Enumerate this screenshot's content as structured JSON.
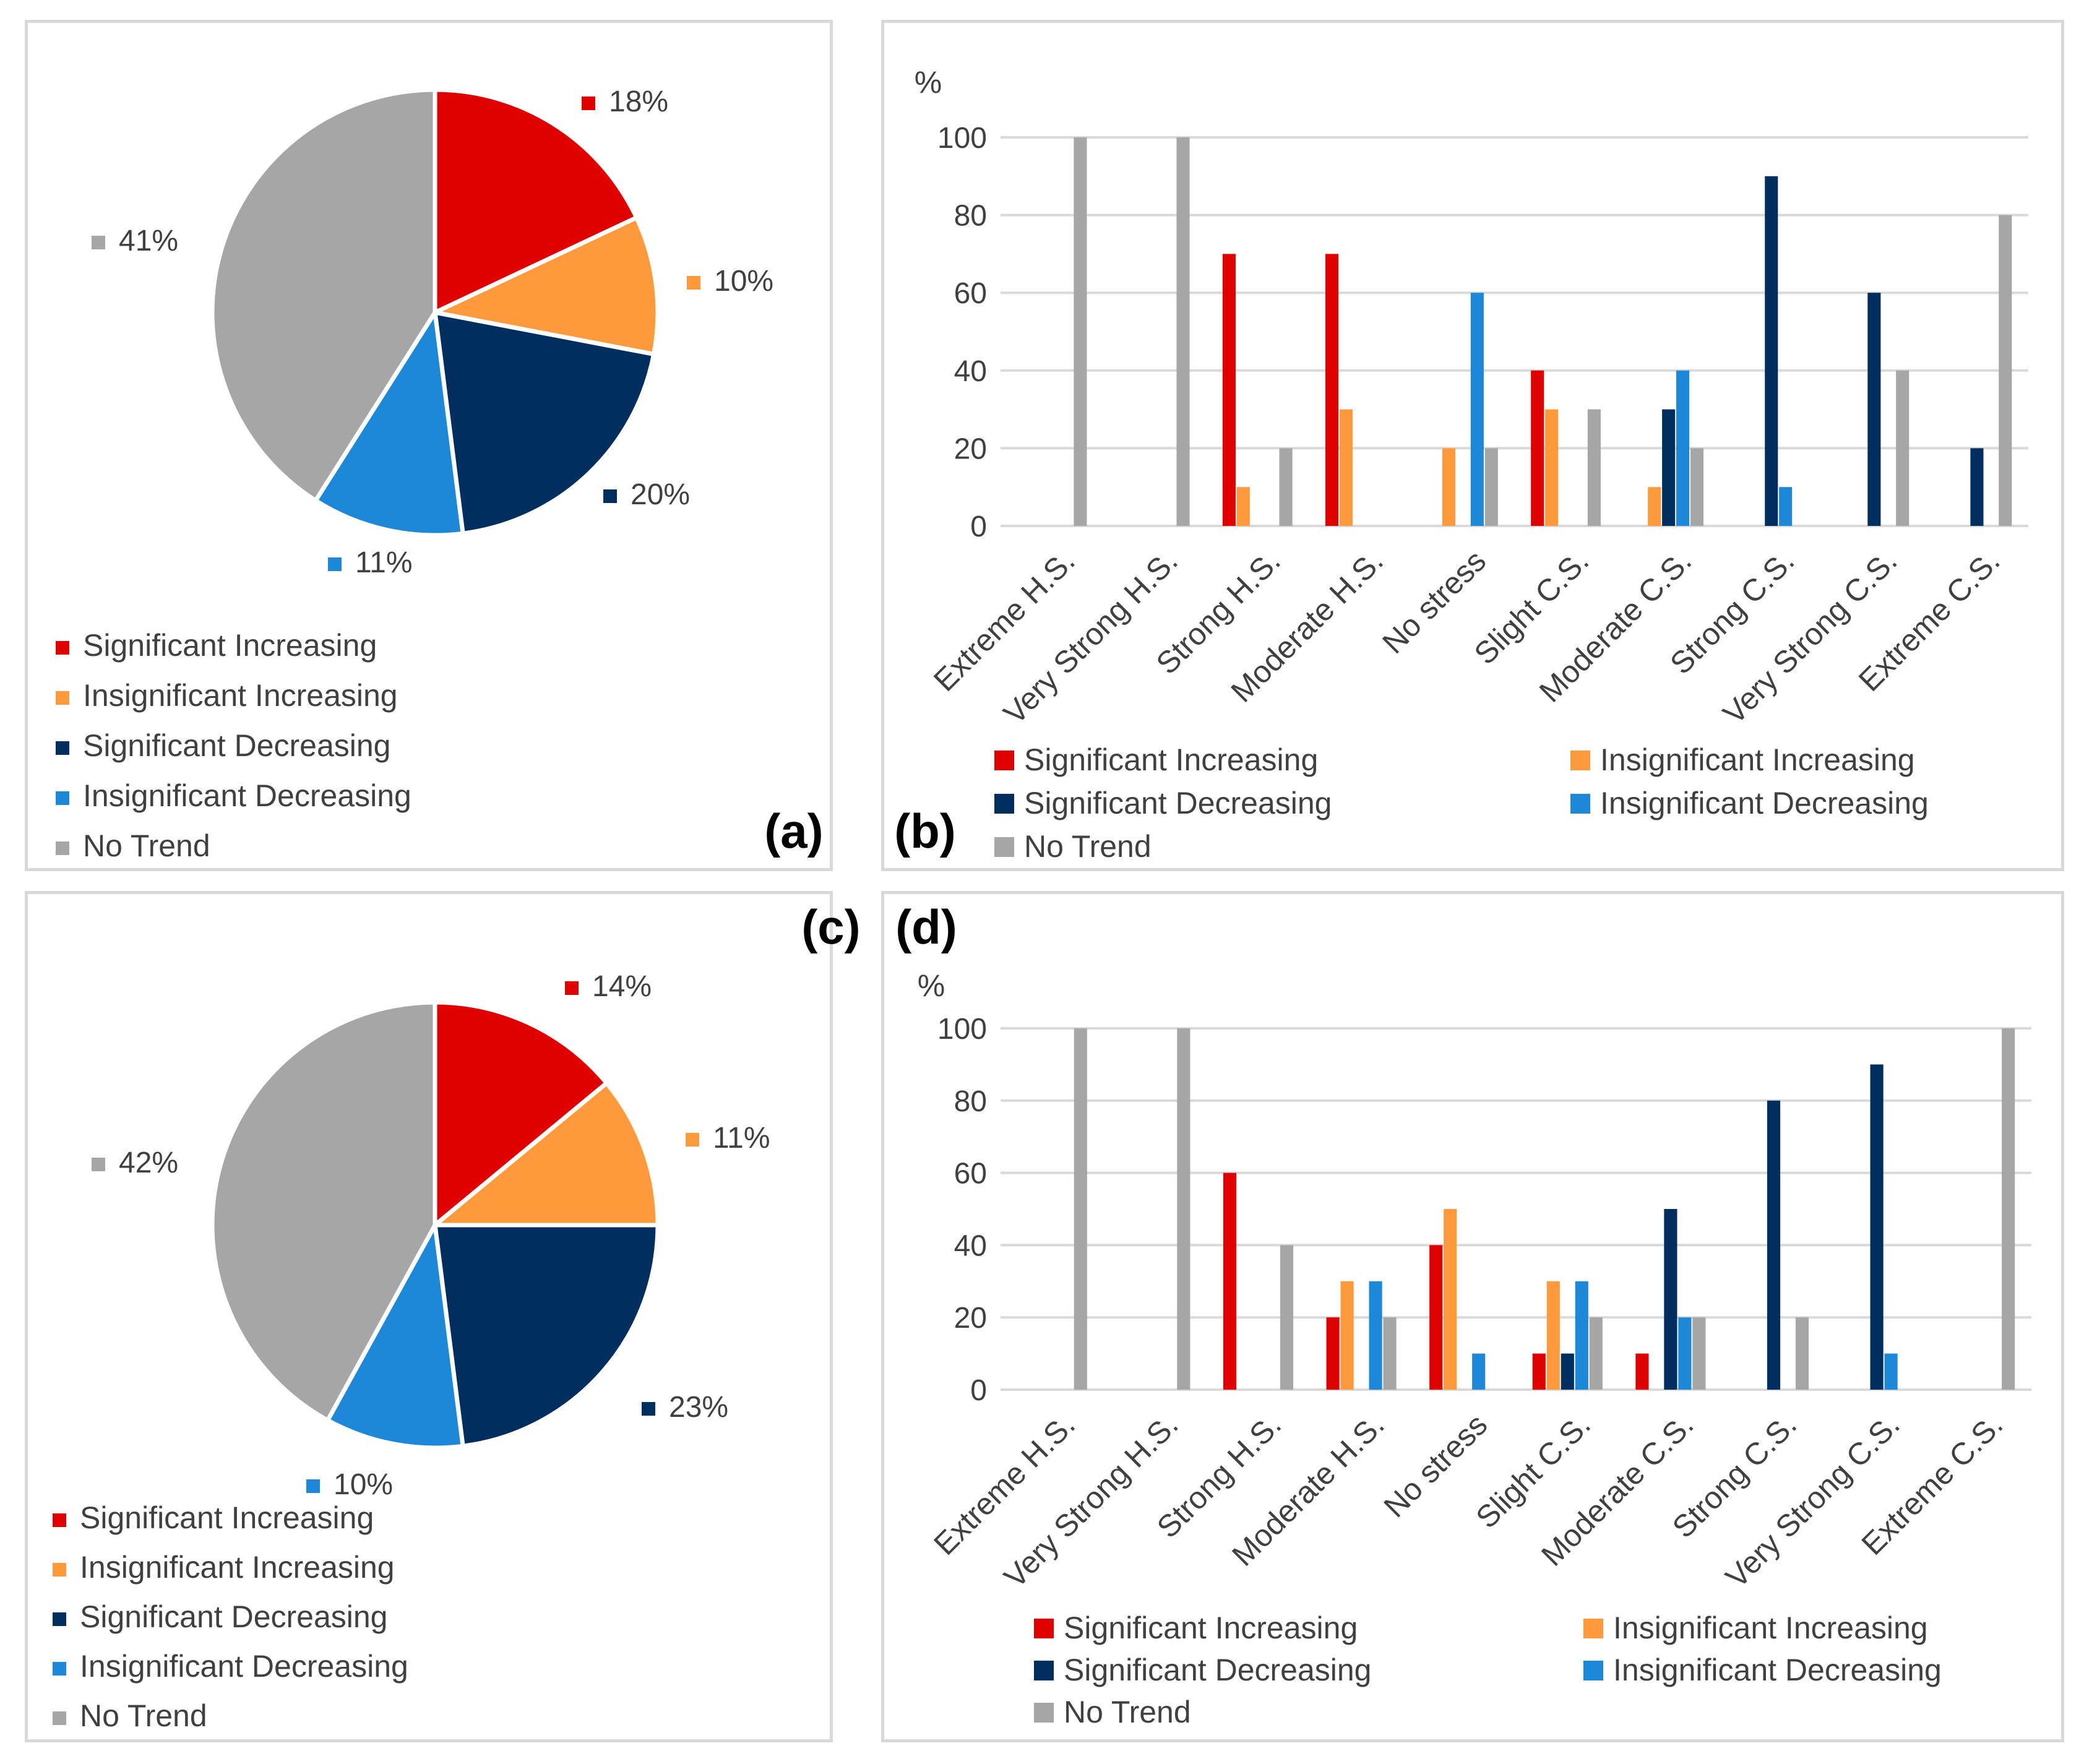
{
  "colors": {
    "significant_increasing": "#e00000",
    "insignificant_increasing": "#ff9a3c",
    "significant_decreasing": "#002f5f",
    "insignificant_decreasing": "#1e88d8",
    "no_trend": "#a6a6a6",
    "gridline": "#d9d9d9",
    "text": "#404040"
  },
  "legend_labels": [
    "Significant Increasing",
    "Insignificant Increasing",
    "Significant Decreasing",
    "Insignificant Decreasing",
    "No Trend"
  ],
  "panels": {
    "a": "(a)",
    "b": "(b)",
    "c": "(c)",
    "d": "(d)"
  },
  "chart_data": [
    {
      "panel": "(a)",
      "type": "pie",
      "labels": [
        "Significant Increasing",
        "Insignificant Increasing",
        "Significant Decreasing",
        "Insignificant Decreasing",
        "No Trend"
      ],
      "values": [
        18,
        10,
        20,
        11,
        41
      ],
      "value_labels": [
        "18%",
        "10%",
        "20%",
        "11%",
        "41%"
      ],
      "legend_position": "bottom-left"
    },
    {
      "panel": "(b)",
      "type": "bar",
      "ylabel": "%",
      "ylim": [
        0,
        100
      ],
      "yticks": [
        "0",
        "20",
        "40",
        "60",
        "80",
        "100"
      ],
      "grid": true,
      "legend_position": "bottom",
      "categories": [
        "Extreme H.S.",
        "Very Strong H.S.",
        "Strong H.S.",
        "Moderate H.S.",
        "No stress",
        "Slight C.S.",
        "Moderate C.S.",
        "Strong C.S.",
        "Very Strong C.S.",
        "Extreme C.S."
      ],
      "series": [
        {
          "name": "Significant Increasing",
          "values": [
            0,
            0,
            70,
            70,
            0,
            40,
            0,
            0,
            0,
            0
          ]
        },
        {
          "name": "Insignificant Increasing",
          "values": [
            0,
            0,
            10,
            30,
            20,
            30,
            10,
            0,
            0,
            0
          ]
        },
        {
          "name": "Significant Decreasing",
          "values": [
            0,
            0,
            0,
            0,
            0,
            0,
            30,
            90,
            60,
            20
          ]
        },
        {
          "name": "Insignificant Decreasing",
          "values": [
            0,
            0,
            0,
            0,
            60,
            0,
            40,
            10,
            0,
            0
          ]
        },
        {
          "name": "No Trend",
          "values": [
            100,
            100,
            20,
            0,
            20,
            30,
            20,
            0,
            40,
            80
          ]
        }
      ]
    },
    {
      "panel": "(c)",
      "type": "pie",
      "labels": [
        "Significant Increasing",
        "Insignificant Increasing",
        "Significant Decreasing",
        "Insignificant Decreasing",
        "No Trend"
      ],
      "values": [
        14,
        11,
        23,
        10,
        42
      ],
      "value_labels": [
        "14%",
        "11%",
        "23%",
        "10%",
        "42%"
      ],
      "legend_position": "bottom-left"
    },
    {
      "panel": "(d)",
      "type": "bar",
      "ylabel": "%",
      "ylim": [
        0,
        100
      ],
      "yticks": [
        "0",
        "20",
        "40",
        "60",
        "80",
        "100"
      ],
      "grid": true,
      "legend_position": "bottom",
      "categories": [
        "Extreme H.S.",
        "Very Strong H.S.",
        "Strong H.S.",
        "Moderate H.S.",
        "No stress",
        "Slight C.S.",
        "Moderate C.S.",
        "Strong C.S.",
        "Very Strong C.S.",
        "Extreme C.S."
      ],
      "series": [
        {
          "name": "Significant Increasing",
          "values": [
            0,
            0,
            60,
            20,
            40,
            10,
            10,
            0,
            0,
            0
          ]
        },
        {
          "name": "Insignificant Increasing",
          "values": [
            0,
            0,
            0,
            30,
            50,
            30,
            0,
            0,
            0,
            0
          ]
        },
        {
          "name": "Significant Decreasing",
          "values": [
            0,
            0,
            0,
            0,
            0,
            10,
            50,
            80,
            90,
            0
          ]
        },
        {
          "name": "Insignificant Decreasing",
          "values": [
            0,
            0,
            0,
            30,
            10,
            30,
            20,
            0,
            10,
            0
          ]
        },
        {
          "name": "No Trend",
          "values": [
            100,
            100,
            40,
            20,
            0,
            20,
            20,
            20,
            0,
            100
          ]
        }
      ]
    }
  ]
}
